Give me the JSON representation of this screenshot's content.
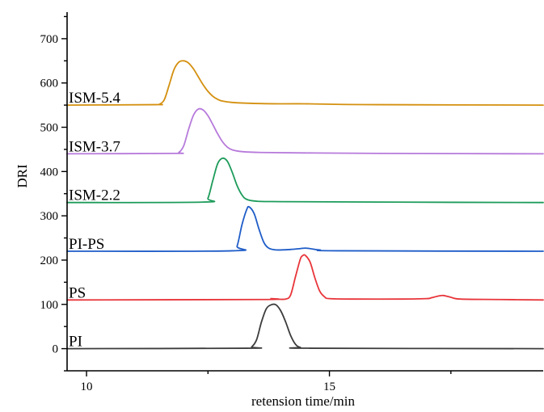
{
  "chart_data": {
    "type": "line",
    "title": "",
    "xlabel": "retension time/min",
    "ylabel": "DRI",
    "xlim": [
      9.6,
      19.4
    ],
    "ylim": [
      -50,
      760
    ],
    "x_ticks": [
      10,
      15
    ],
    "x_tick_labels": [
      "10",
      "15"
    ],
    "y_ticks": [
      0,
      100,
      200,
      300,
      400,
      500,
      600,
      700
    ],
    "y_tick_labels": [
      "0",
      "100",
      "200",
      "300",
      "400",
      "500",
      "600",
      "700"
    ],
    "grid": false,
    "legend": "none",
    "series": [
      {
        "name": "ISM-5.4",
        "color": "#D4900F",
        "points": [
          [
            9.6,
            550
          ],
          [
            11.4,
            551
          ],
          [
            11.5,
            552
          ],
          [
            11.6,
            562
          ],
          [
            11.7,
            595
          ],
          [
            11.8,
            630
          ],
          [
            11.9,
            647
          ],
          [
            12.0,
            650
          ],
          [
            12.1,
            645
          ],
          [
            12.2,
            632
          ],
          [
            12.3,
            614
          ],
          [
            12.4,
            596
          ],
          [
            12.5,
            581
          ],
          [
            12.6,
            570
          ],
          [
            12.7,
            563
          ],
          [
            12.8,
            559
          ],
          [
            13.0,
            556
          ],
          [
            13.4,
            554
          ],
          [
            14.0,
            553
          ],
          [
            14.5,
            553
          ],
          [
            15.0,
            552
          ],
          [
            16.0,
            551
          ],
          [
            19.4,
            550
          ]
        ]
      },
      {
        "name": "ISM-3.7",
        "color": "#B77ADB",
        "points": [
          [
            9.6,
            440
          ],
          [
            11.8,
            441
          ],
          [
            11.9,
            443
          ],
          [
            12.0,
            458
          ],
          [
            12.1,
            495
          ],
          [
            12.2,
            527
          ],
          [
            12.3,
            541
          ],
          [
            12.4,
            539
          ],
          [
            12.5,
            526
          ],
          [
            12.6,
            506
          ],
          [
            12.7,
            485
          ],
          [
            12.8,
            467
          ],
          [
            12.9,
            455
          ],
          [
            13.0,
            449
          ],
          [
            13.2,
            445
          ],
          [
            13.6,
            443
          ],
          [
            14.5,
            442
          ],
          [
            16.0,
            441
          ],
          [
            19.4,
            440
          ]
        ]
      },
      {
        "name": "ISM-2.2",
        "color": "#1C9B5A",
        "points": [
          [
            9.6,
            330
          ],
          [
            12.4,
            331
          ],
          [
            12.5,
            340
          ],
          [
            12.6,
            380
          ],
          [
            12.7,
            418
          ],
          [
            12.8,
            430
          ],
          [
            12.9,
            423
          ],
          [
            13.0,
            398
          ],
          [
            13.1,
            368
          ],
          [
            13.2,
            347
          ],
          [
            13.3,
            337
          ],
          [
            13.5,
            333
          ],
          [
            14.0,
            332
          ],
          [
            16.0,
            331
          ],
          [
            19.4,
            330
          ]
        ]
      },
      {
        "name": "PI-PS",
        "color": "#1E5CC8",
        "points": [
          [
            9.6,
            220
          ],
          [
            13.0,
            221
          ],
          [
            13.1,
            232
          ],
          [
            13.2,
            280
          ],
          [
            13.3,
            315
          ],
          [
            13.35,
            320
          ],
          [
            13.45,
            305
          ],
          [
            13.55,
            270
          ],
          [
            13.65,
            240
          ],
          [
            13.75,
            227
          ],
          [
            13.9,
            223
          ],
          [
            14.2,
            224
          ],
          [
            14.4,
            226
          ],
          [
            14.5,
            227
          ],
          [
            14.6,
            226
          ],
          [
            14.8,
            223
          ],
          [
            15.2,
            221
          ],
          [
            19.4,
            220
          ]
        ]
      },
      {
        "name": "PS",
        "color": "#E8353A",
        "points": [
          [
            9.6,
            110
          ],
          [
            13.6,
            111
          ],
          [
            13.8,
            113
          ],
          [
            13.9,
            112
          ],
          [
            14.1,
            112
          ],
          [
            14.2,
            121
          ],
          [
            14.3,
            162
          ],
          [
            14.4,
            202
          ],
          [
            14.45,
            210
          ],
          [
            14.5,
            211
          ],
          [
            14.6,
            196
          ],
          [
            14.7,
            160
          ],
          [
            14.8,
            130
          ],
          [
            14.9,
            117
          ],
          [
            15.0,
            113
          ],
          [
            15.5,
            112
          ],
          [
            16.5,
            112
          ],
          [
            17.0,
            113
          ],
          [
            17.1,
            115
          ],
          [
            17.25,
            119
          ],
          [
            17.35,
            120
          ],
          [
            17.5,
            116
          ],
          [
            17.7,
            112
          ],
          [
            18.5,
            111
          ],
          [
            19.4,
            110
          ]
        ]
      },
      {
        "name": "PI",
        "color": "#3C3C3C",
        "points": [
          [
            9.6,
            0
          ],
          [
            13.3,
            1
          ],
          [
            13.4,
            4
          ],
          [
            13.5,
            20
          ],
          [
            13.6,
            60
          ],
          [
            13.7,
            90
          ],
          [
            13.8,
            99
          ],
          [
            13.9,
            99
          ],
          [
            14.0,
            85
          ],
          [
            14.1,
            60
          ],
          [
            14.2,
            30
          ],
          [
            14.3,
            10
          ],
          [
            14.4,
            3
          ],
          [
            14.6,
            1
          ],
          [
            19.4,
            0
          ]
        ]
      }
    ]
  }
}
